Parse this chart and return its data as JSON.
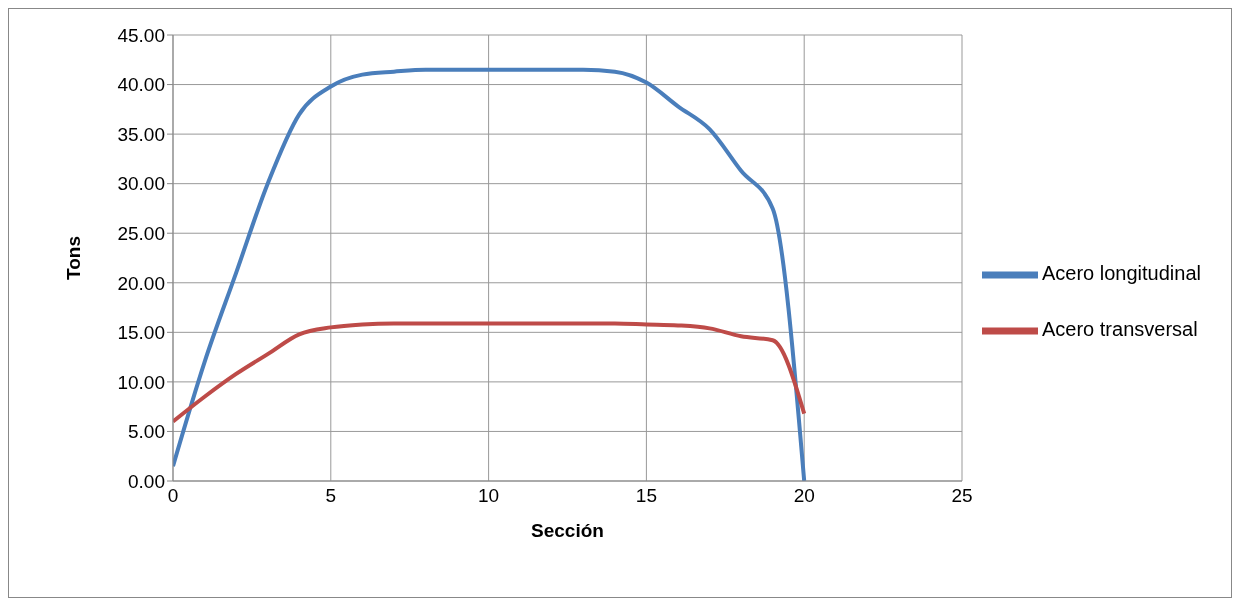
{
  "chart_data": {
    "type": "line",
    "xlabel": "Sección",
    "ylabel": "Tons",
    "x": [
      0,
      1,
      2,
      3,
      4,
      5,
      6,
      7,
      8,
      9,
      10,
      11,
      12,
      13,
      14,
      15,
      16,
      17,
      18,
      19,
      20
    ],
    "series": [
      {
        "name": "Acero longitudinal",
        "color": "#4a7ebb",
        "values": [
          1.5,
          12,
          21,
          30,
          37,
          39.8,
          41,
          41.3,
          41.5,
          41.5,
          41.5,
          41.5,
          41.5,
          41.5,
          41.3,
          40.2,
          37.8,
          35.5,
          31.3,
          27.5,
          0
        ]
      },
      {
        "name": "Acero transversal",
        "color": "#be4b48",
        "values": [
          6,
          8.5,
          10.8,
          12.8,
          14.8,
          15.5,
          15.8,
          15.9,
          15.9,
          15.9,
          15.9,
          15.9,
          15.9,
          15.9,
          15.9,
          15.8,
          15.7,
          15.4,
          14.6,
          14.2,
          6.8
        ]
      }
    ],
    "xlim": [
      0,
      25
    ],
    "xticks": [
      0,
      5,
      10,
      15,
      20,
      25
    ],
    "ylim": [
      0,
      45
    ],
    "yticks": [
      {
        "value": 0,
        "label": "0.00"
      },
      {
        "value": 5,
        "label": "5.00"
      },
      {
        "value": 10,
        "label": "10.00"
      },
      {
        "value": 15,
        "label": "15.00"
      },
      {
        "value": 20,
        "label": "20.00"
      },
      {
        "value": 25,
        "label": "25.00"
      },
      {
        "value": 30,
        "label": "30.00"
      },
      {
        "value": 35,
        "label": "35.00"
      },
      {
        "value": 40,
        "label": "40.00"
      },
      {
        "value": 45,
        "label": "45.00"
      }
    ],
    "grid": true,
    "legend": "right",
    "marker": "none",
    "line_style": "solid"
  }
}
